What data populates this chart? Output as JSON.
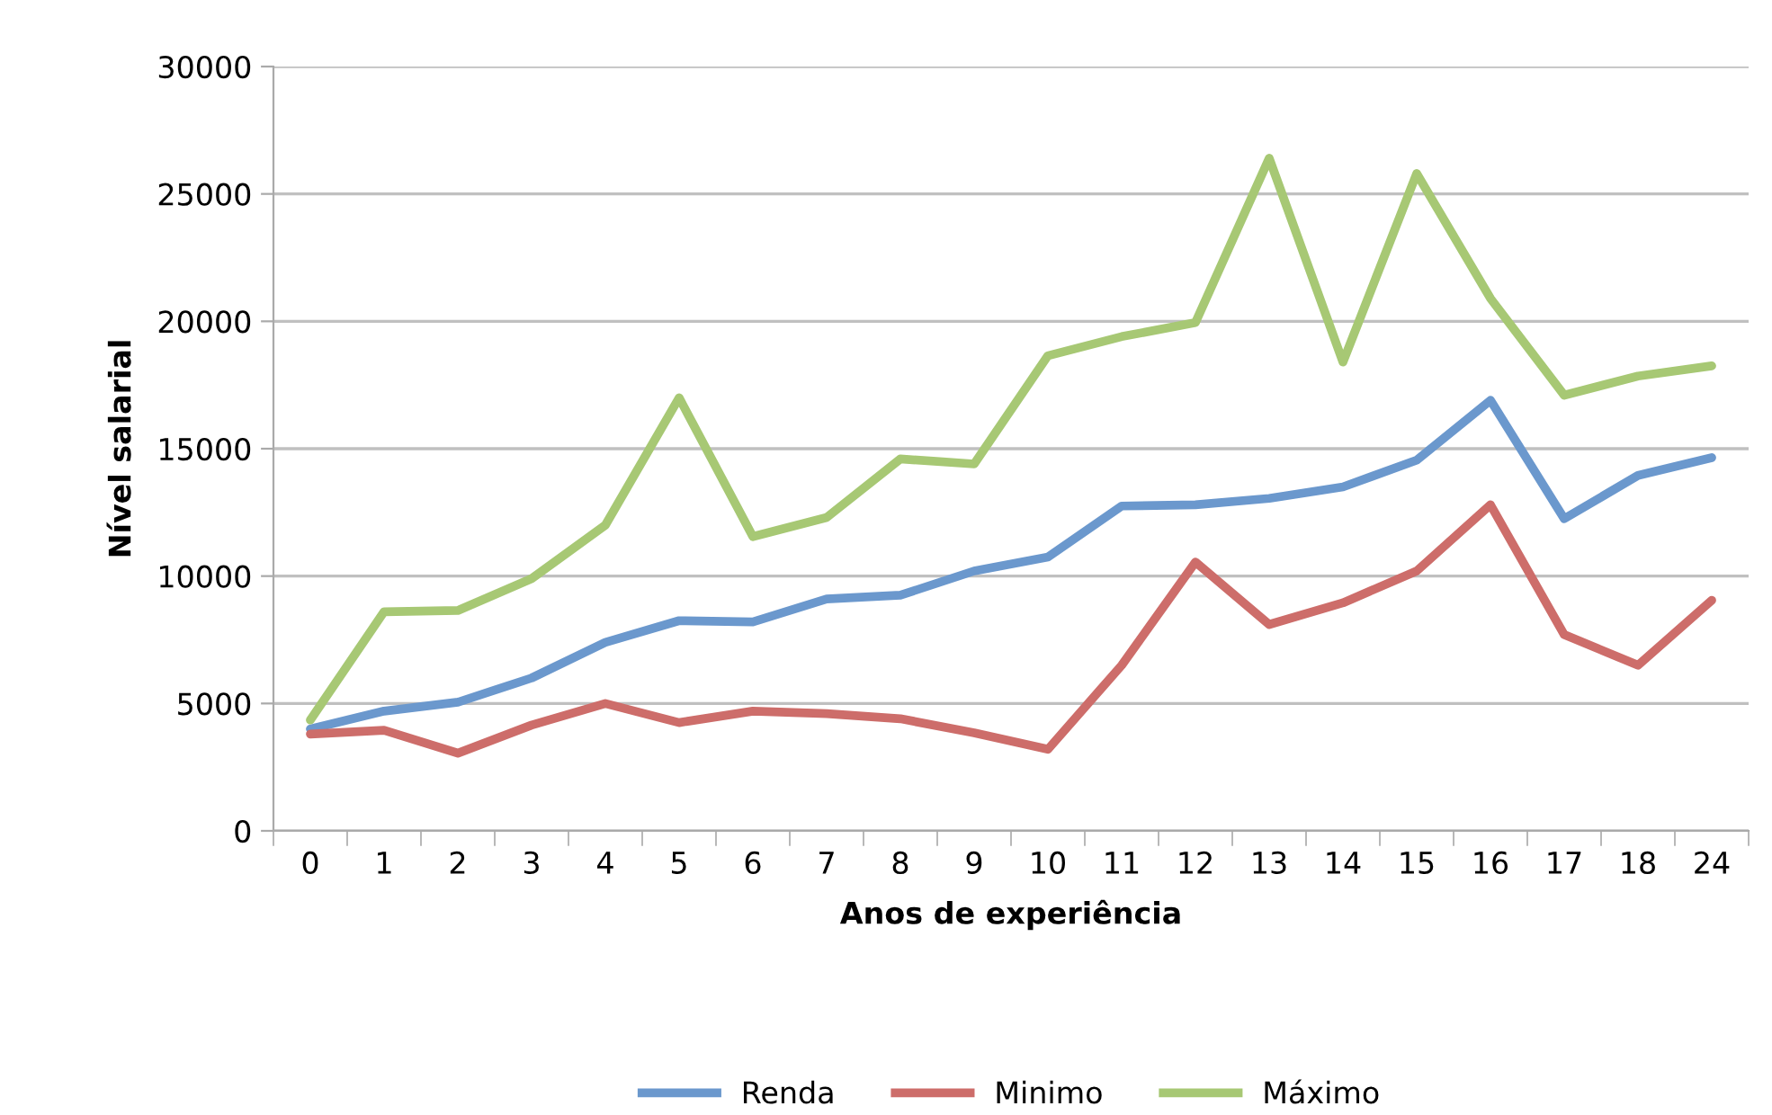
{
  "chart_data": {
    "type": "line",
    "xlabel": "Anos de experiência",
    "ylabel": "Nível salarial",
    "categories": [
      "0",
      "1",
      "2",
      "3",
      "4",
      "5",
      "6",
      "7",
      "8",
      "9",
      "10",
      "11",
      "12",
      "13",
      "14",
      "15",
      "16",
      "17",
      "18",
      "24"
    ],
    "series": [
      {
        "name": "Renda",
        "color": "#6b98cd",
        "values": [
          4000,
          4700,
          5050,
          6000,
          7400,
          8250,
          8200,
          9100,
          9250,
          10200,
          10750,
          12750,
          12800,
          13050,
          13500,
          14550,
          16900,
          12250,
          13950,
          14650
        ]
      },
      {
        "name": "Minimo",
        "color": "#cd6d6a",
        "values": [
          3800,
          3950,
          3050,
          4150,
          5000,
          4250,
          4700,
          4600,
          4400,
          3850,
          3200,
          6500,
          10550,
          8100,
          8950,
          10200,
          12800,
          7700,
          6500,
          9050
        ]
      },
      {
        "name": "Máximo",
        "color": "#a7c874",
        "values": [
          4350,
          8600,
          8650,
          9900,
          12000,
          17000,
          11550,
          12300,
          14600,
          14400,
          18650,
          19400,
          19950,
          26400,
          18400,
          25800,
          20900,
          17100,
          17850,
          18250
        ]
      }
    ],
    "ylim": [
      0,
      30000
    ],
    "yticks": [
      0,
      5000,
      10000,
      15000,
      20000,
      25000,
      30000
    ],
    "grid": "y",
    "legend": "bottom",
    "marker": "none",
    "line_style": "solid"
  }
}
